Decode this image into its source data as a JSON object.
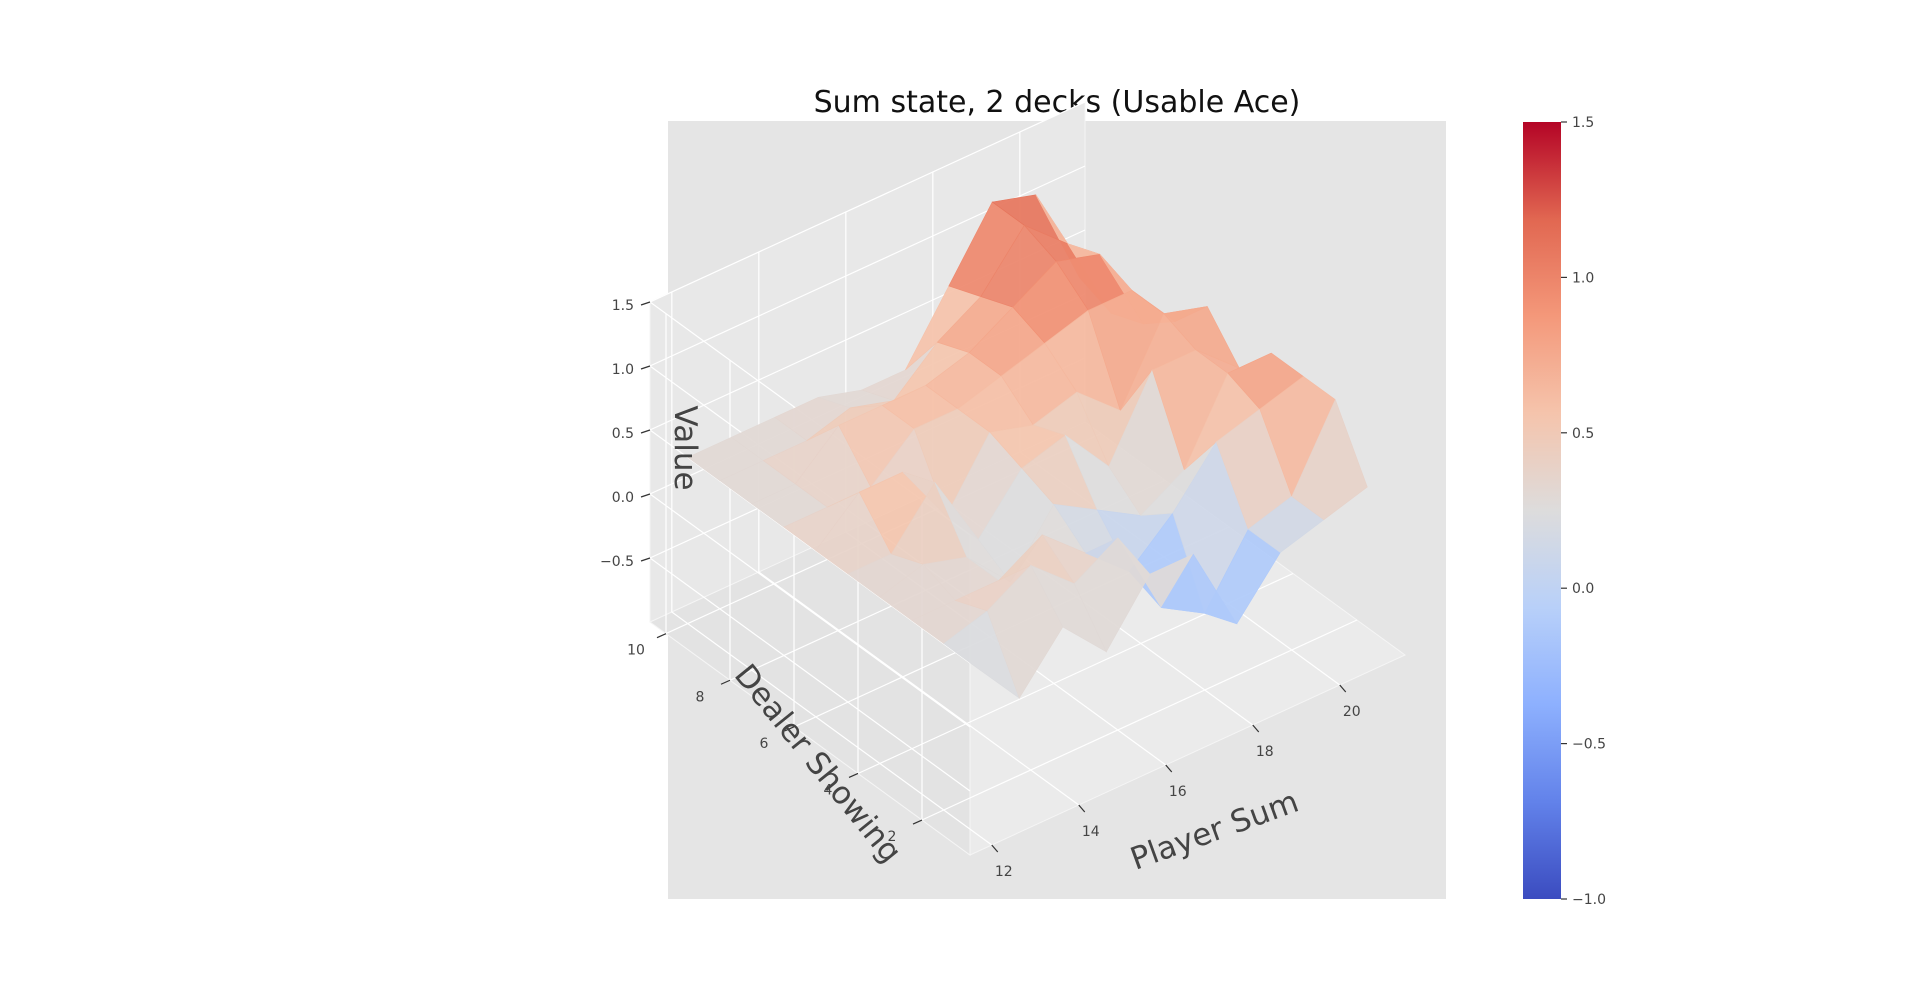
{
  "chart_data": {
    "type": "surface3d",
    "title": "Sum state, 2 decks (Usable Ace)",
    "xlabel": "Player Sum",
    "ylabel": "Dealer Showing",
    "zlabel": "Value",
    "x": [
      12,
      13,
      14,
      15,
      16,
      17,
      18,
      19,
      20,
      21
    ],
    "y": [
      1,
      2,
      3,
      4,
      5,
      6,
      7,
      8,
      9,
      10
    ],
    "z": [
      [
        0.3,
        -0.1,
        0.3,
        -0.05,
        0.4,
        0.4,
        -0.3,
        0.1,
        0.2,
        0.3
      ],
      [
        0.3,
        0.4,
        0.6,
        0.3,
        0.5,
        -0.2,
        -0.4,
        0.1,
        0.2,
        0.8
      ],
      [
        0.3,
        0.3,
        0.3,
        0.5,
        0.2,
        -0.1,
        0.2,
        0.6,
        0.7,
        0.8
      ],
      [
        0.3,
        0.4,
        0.3,
        -0.05,
        0.4,
        0.2,
        0.0,
        0.2,
        0.8,
        0.8
      ],
      [
        0.3,
        0.3,
        0.7,
        0.1,
        0.5,
        0.6,
        0.2,
        0.8,
        0.8,
        0.5
      ],
      [
        0.3,
        0.6,
        0.6,
        0.1,
        0.6,
        0.5,
        0.6,
        0.3,
        0.9,
        0.8
      ],
      [
        0.3,
        0.3,
        0.3,
        0.6,
        0.6,
        0.7,
        0.8,
        0.9,
        0.9,
        0.5
      ],
      [
        0.3,
        0.3,
        0.6,
        0.6,
        0.6,
        0.7,
        0.9,
        1.1,
        1.0,
        0.3
      ],
      [
        0.3,
        0.3,
        0.3,
        0.4,
        0.3,
        0.6,
        0.8,
        1.2,
        0.9,
        0.2
      ],
      [
        0.3,
        0.3,
        0.3,
        0.3,
        0.2,
        0.2,
        0.7,
        1.2,
        1.1,
        0.3
      ]
    ],
    "zlim": [
      -1,
      1.5
    ],
    "xticks": [
      12,
      14,
      16,
      18,
      20
    ],
    "yticks": [
      2,
      4,
      6,
      8,
      10
    ],
    "zticks": [
      -0.5,
      0.0,
      0.5,
      1.0,
      1.5
    ],
    "colorbar": {
      "cmap": "coolwarm",
      "min": -1.0,
      "max": 1.5,
      "ticks": [
        -1.0,
        -0.5,
        0.0,
        0.5,
        1.0,
        1.5
      ]
    },
    "grid": true,
    "background": "#e5e5e5",
    "colors": {
      "low": "#3b4cc0",
      "mid": "#dddddd",
      "high": "#b40426"
    }
  }
}
